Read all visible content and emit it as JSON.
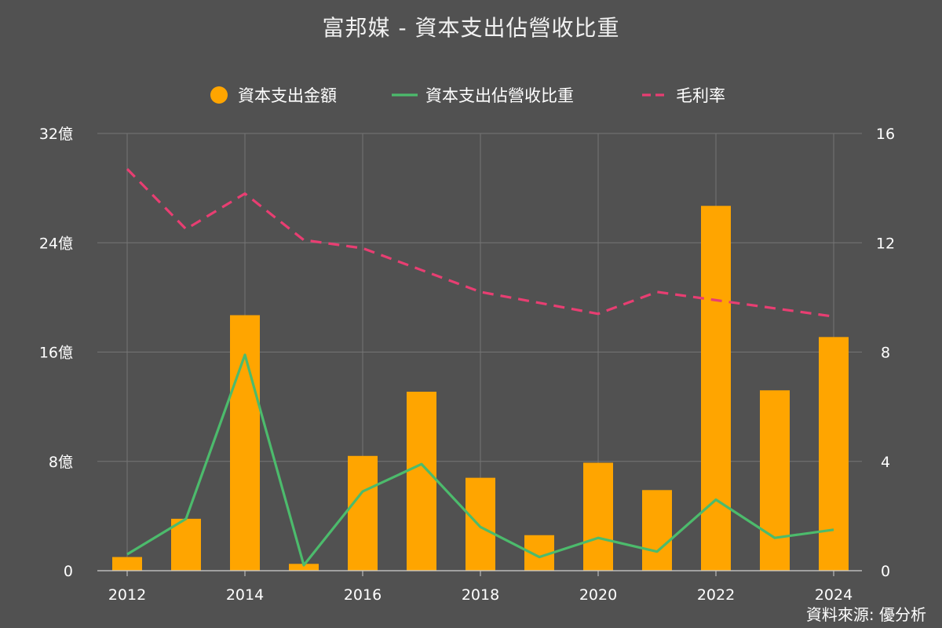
{
  "source": "資料來源: 優分析",
  "chart_data": {
    "type": "bar",
    "title": "富邦媒 - 資本支出佔營收比重",
    "x": [
      2012,
      2013,
      2014,
      2015,
      2016,
      2017,
      2018,
      2019,
      2020,
      2021,
      2022,
      2023,
      2024
    ],
    "x_ticks": [
      "2012",
      "2014",
      "2016",
      "2018",
      "2020",
      "2022",
      "2024"
    ],
    "y_left": {
      "ylim": [
        0,
        32
      ],
      "ticks": [
        0,
        8,
        16,
        24,
        32
      ],
      "tick_labels": [
        "0",
        "8億",
        "16億",
        "24億",
        "32億"
      ]
    },
    "y_right": {
      "ylim": [
        0,
        16
      ],
      "ticks": [
        0,
        4,
        8,
        12,
        16
      ],
      "tick_labels": [
        "0",
        "4",
        "8",
        "12",
        "16"
      ]
    },
    "legend_position": "top-center",
    "grid": true,
    "series": [
      {
        "name": "資本支出金額",
        "type": "bar",
        "axis": "left",
        "color": "#FFA500",
        "values": [
          1.0,
          3.8,
          18.7,
          0.5,
          8.4,
          13.1,
          6.8,
          2.6,
          7.9,
          5.9,
          26.7,
          13.2,
          17.1
        ]
      },
      {
        "name": "資本支出佔營收比重",
        "type": "line",
        "axis": "right",
        "color": "#4CBB6C",
        "values": [
          0.6,
          1.9,
          7.9,
          0.2,
          2.9,
          3.9,
          1.6,
          0.5,
          1.2,
          0.7,
          2.6,
          1.2,
          1.5
        ]
      },
      {
        "name": "毛利率",
        "type": "line-dashed",
        "axis": "right",
        "color": "#E83E72",
        "values": [
          14.7,
          12.5,
          13.8,
          12.1,
          11.8,
          11.0,
          10.2,
          9.8,
          9.4,
          10.2,
          9.9,
          9.6,
          9.3
        ]
      }
    ]
  }
}
